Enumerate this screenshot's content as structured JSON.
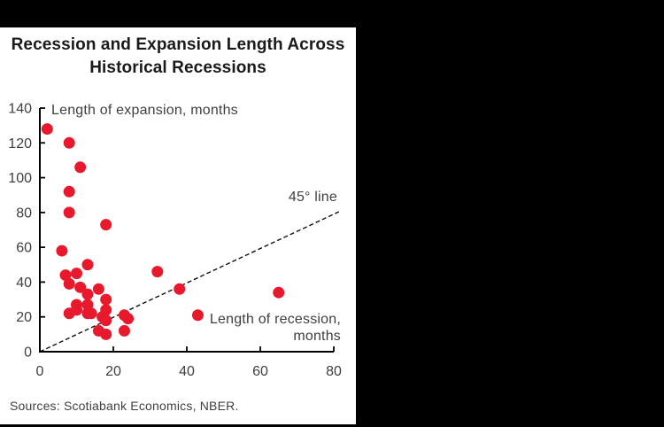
{
  "header": {
    "title_line1": "Recession and Expansion Length Across",
    "title_line2": "Historical Recessions"
  },
  "footer": {
    "sources": "Sources: Scotiabank Economics, NBER."
  },
  "chart_data": {
    "type": "scatter",
    "title": "Recession and Expansion Length Across Historical Recessions",
    "annotations": {
      "y_axis": "Length of expansion, months",
      "x_axis_line1": "Length of recession,",
      "x_axis_line2": "months",
      "diagonal": "45° line"
    },
    "xlim": [
      0,
      80
    ],
    "ylim": [
      0,
      140
    ],
    "xticks": [
      0,
      20,
      40,
      60,
      80
    ],
    "yticks": [
      0,
      20,
      40,
      60,
      80,
      100,
      120,
      140
    ],
    "grid": false,
    "reference_line": {
      "type": "45-degree",
      "dashed": true,
      "from": [
        0,
        0
      ],
      "to": [
        82,
        81
      ]
    },
    "points": [
      [
        18,
        30
      ],
      [
        8,
        22
      ],
      [
        32,
        46
      ],
      [
        18,
        18
      ],
      [
        65,
        34
      ],
      [
        38,
        36
      ],
      [
        13,
        22
      ],
      [
        10,
        27
      ],
      [
        17,
        20
      ],
      [
        18,
        18
      ],
      [
        18,
        24
      ],
      [
        23,
        21
      ],
      [
        13,
        33
      ],
      [
        24,
        19
      ],
      [
        23,
        12
      ],
      [
        7,
        44
      ],
      [
        18,
        10
      ],
      [
        14,
        22
      ],
      [
        13,
        27
      ],
      [
        43,
        21
      ],
      [
        13,
        50
      ],
      [
        8,
        80
      ],
      [
        11,
        37
      ],
      [
        10,
        45
      ],
      [
        8,
        39
      ],
      [
        10,
        24
      ],
      [
        11,
        106
      ],
      [
        16,
        36
      ],
      [
        6,
        58
      ],
      [
        16,
        12
      ],
      [
        8,
        92
      ],
      [
        8,
        120
      ],
      [
        18,
        73
      ],
      [
        2,
        128
      ]
    ],
    "colors": {
      "point": "#e8192c",
      "axis": "#000000",
      "tick_text": "#3f3f3f",
      "reference_line": "#111111"
    }
  }
}
